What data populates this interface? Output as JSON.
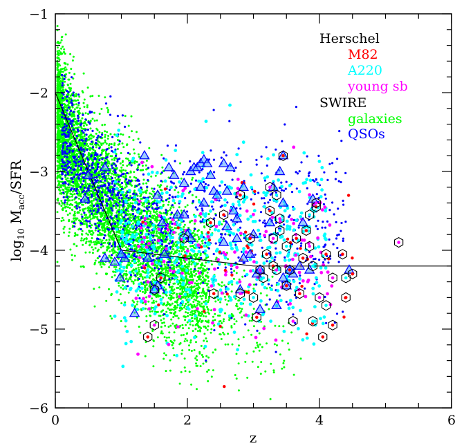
{
  "chart_data": {
    "type": "scatter",
    "xlabel": "z",
    "ylabel_main": "log",
    "ylabel_sub": "10",
    "ylabel_m": " M",
    "ylabel_msub": "acc",
    "ylabel_rest": "/SFR",
    "xlim": [
      0,
      6
    ],
    "ylim": [
      -6,
      -1
    ],
    "xticks": [
      0,
      2,
      4,
      6
    ],
    "yticks": [
      -1,
      -2,
      -3,
      -4,
      -5,
      -6
    ],
    "xtick_labels": [
      "0",
      "2",
      "4",
      "6"
    ],
    "ytick_labels": [
      "−1",
      "−2",
      "−3",
      "−4",
      "−5",
      "−6"
    ],
    "legend": {
      "position": "top-right",
      "group1": "Herschel",
      "group2": "SWIRE",
      "entries": [
        {
          "label": "M82",
          "color": "#ff0000",
          "group": "Herschel"
        },
        {
          "label": "A220",
          "color": "#00ffff",
          "group": "Herschel"
        },
        {
          "label": "young sb",
          "color": "#ff00ff",
          "group": "Herschel"
        },
        {
          "label": "galaxies",
          "color": "#00ff00",
          "group": "SWIRE"
        },
        {
          "label": "QSOs",
          "color": "#0000ff",
          "group": "SWIRE"
        }
      ]
    },
    "line": {
      "x": [
        0,
        1,
        3,
        6
      ],
      "y": [
        -2,
        -4,
        -4.2,
        -4.2
      ]
    },
    "triangles": [
      [
        1.35,
        -2.8
      ],
      [
        1.2,
        -4.8
      ],
      [
        0.98,
        -4.35
      ],
      [
        0.9,
        -4.15
      ],
      [
        0.75,
        -4.1
      ],
      [
        1.05,
        -4.1
      ],
      [
        1.4,
        -4.1
      ],
      [
        1.62,
        -3.65
      ],
      [
        1.55,
        -3.3
      ],
      [
        1.65,
        -4.05
      ],
      [
        1.55,
        -4.45
      ],
      [
        1.72,
        -2.95
      ],
      [
        1.85,
        -3.55
      ],
      [
        1.95,
        -3.15
      ],
      [
        1.95,
        -3.55
      ],
      [
        2.0,
        -3.8
      ],
      [
        2.05,
        -3.0
      ],
      [
        2.1,
        -2.95
      ],
      [
        2.15,
        -2.95
      ],
      [
        2.2,
        -2.9
      ],
      [
        2.25,
        -2.85
      ],
      [
        2.3,
        -2.9
      ],
      [
        2.35,
        -3.05
      ],
      [
        2.4,
        -3.25
      ],
      [
        2.45,
        -3.3
      ],
      [
        2.2,
        -3.2
      ],
      [
        2.55,
        -2.9
      ],
      [
        2.65,
        -2.95
      ],
      [
        2.7,
        -3.5
      ],
      [
        2.75,
        -3.6
      ],
      [
        2.6,
        -3.7
      ],
      [
        2.55,
        -3.9
      ],
      [
        2.75,
        -3.85
      ],
      [
        2.85,
        -4.1
      ],
      [
        2.95,
        -4.05
      ],
      [
        2.8,
        -4.5
      ],
      [
        2.85,
        -3.2
      ],
      [
        3.0,
        -3.8
      ],
      [
        3.05,
        -4.3
      ],
      [
        3.1,
        -4.25
      ],
      [
        3.1,
        -4.75
      ],
      [
        3.25,
        -3.65
      ],
      [
        3.35,
        -4.7
      ],
      [
        3.4,
        -3.0
      ],
      [
        3.3,
        -3.2
      ],
      [
        3.45,
        -3.4
      ],
      [
        3.45,
        -4.35
      ],
      [
        3.5,
        -4.45
      ],
      [
        3.55,
        -4.25
      ],
      [
        3.6,
        -4.3
      ],
      [
        3.7,
        -4.2
      ],
      [
        3.75,
        -3.65
      ],
      [
        3.85,
        -4.25
      ],
      [
        3.9,
        -3.35
      ],
      [
        4.45,
        -4.25
      ],
      [
        3.45,
        -2.8
      ],
      [
        0.75,
        -2.95
      ],
      [
        0.5,
        -3.05
      ],
      [
        1.0,
        -4.05
      ],
      [
        0.45,
        -3.35
      ],
      [
        1.5,
        -4.5
      ],
      [
        2.25,
        -3.4
      ],
      [
        2.05,
        -3.85
      ],
      [
        1.8,
        -3.05
      ],
      [
        2.6,
        -3.25
      ]
    ],
    "hexagons": [
      [
        1.4,
        -5.1
      ],
      [
        1.5,
        -4.95
      ],
      [
        1.5,
        -4.5
      ],
      [
        1.6,
        -4.35
      ],
      [
        3.45,
        -2.8
      ],
      [
        3.25,
        -3.2
      ],
      [
        3.35,
        -3.3
      ],
      [
        3.25,
        -3.5
      ],
      [
        2.8,
        -3.3
      ],
      [
        3.4,
        -3.6
      ],
      [
        3.4,
        -3.75
      ],
      [
        3.65,
        -3.85
      ],
      [
        3.95,
        -3.45
      ],
      [
        3.95,
        -3.4
      ],
      [
        3.85,
        -3.55
      ],
      [
        3.8,
        -3.75
      ],
      [
        2.95,
        -3.85
      ],
      [
        3.3,
        -3.85
      ],
      [
        3.5,
        -3.95
      ],
      [
        3.2,
        -4.05
      ],
      [
        3.3,
        -4.2
      ],
      [
        3.35,
        -4.25
      ],
      [
        3.15,
        -4.35
      ],
      [
        3.55,
        -4.25
      ],
      [
        3.75,
        -4.1
      ],
      [
        3.85,
        -3.95
      ],
      [
        3.9,
        -4.2
      ],
      [
        4.1,
        -4.05
      ],
      [
        4.35,
        -4.05
      ],
      [
        4.2,
        -4.35
      ],
      [
        4.4,
        -4.35
      ],
      [
        4.5,
        -4.3
      ],
      [
        4.4,
        -4.6
      ],
      [
        4.0,
        -4.6
      ],
      [
        4.1,
        -4.7
      ],
      [
        4.2,
        -4.95
      ],
      [
        4.05,
        -5.1
      ],
      [
        3.6,
        -4.9
      ],
      [
        3.9,
        -4.9
      ],
      [
        3.5,
        -4.45
      ],
      [
        3.7,
        -4.55
      ],
      [
        2.8,
        -4.55
      ],
      [
        3.0,
        -4.6
      ],
      [
        3.05,
        -4.85
      ],
      [
        2.4,
        -4.55
      ],
      [
        5.2,
        -3.9
      ],
      [
        1.95,
        -3.85
      ],
      [
        2.35,
        -3.65
      ],
      [
        2.55,
        -3.55
      ],
      [
        3.1,
        -4.25
      ]
    ],
    "clouds": [
      {
        "name": "galaxies",
        "color": "#00ff00",
        "n": 5200,
        "size": 1.5
      },
      {
        "name": "QSOs",
        "color": "#0000ff",
        "n": 1100,
        "size": 1.6
      },
      {
        "name": "A220",
        "color": "#00ffff",
        "n": 500,
        "size": 2.4
      },
      {
        "name": "young sb",
        "color": "#ff00ff",
        "n": 130,
        "size": 2.4
      },
      {
        "name": "M82",
        "color": "#ff0000",
        "n": 40,
        "size": 2.2
      }
    ]
  }
}
